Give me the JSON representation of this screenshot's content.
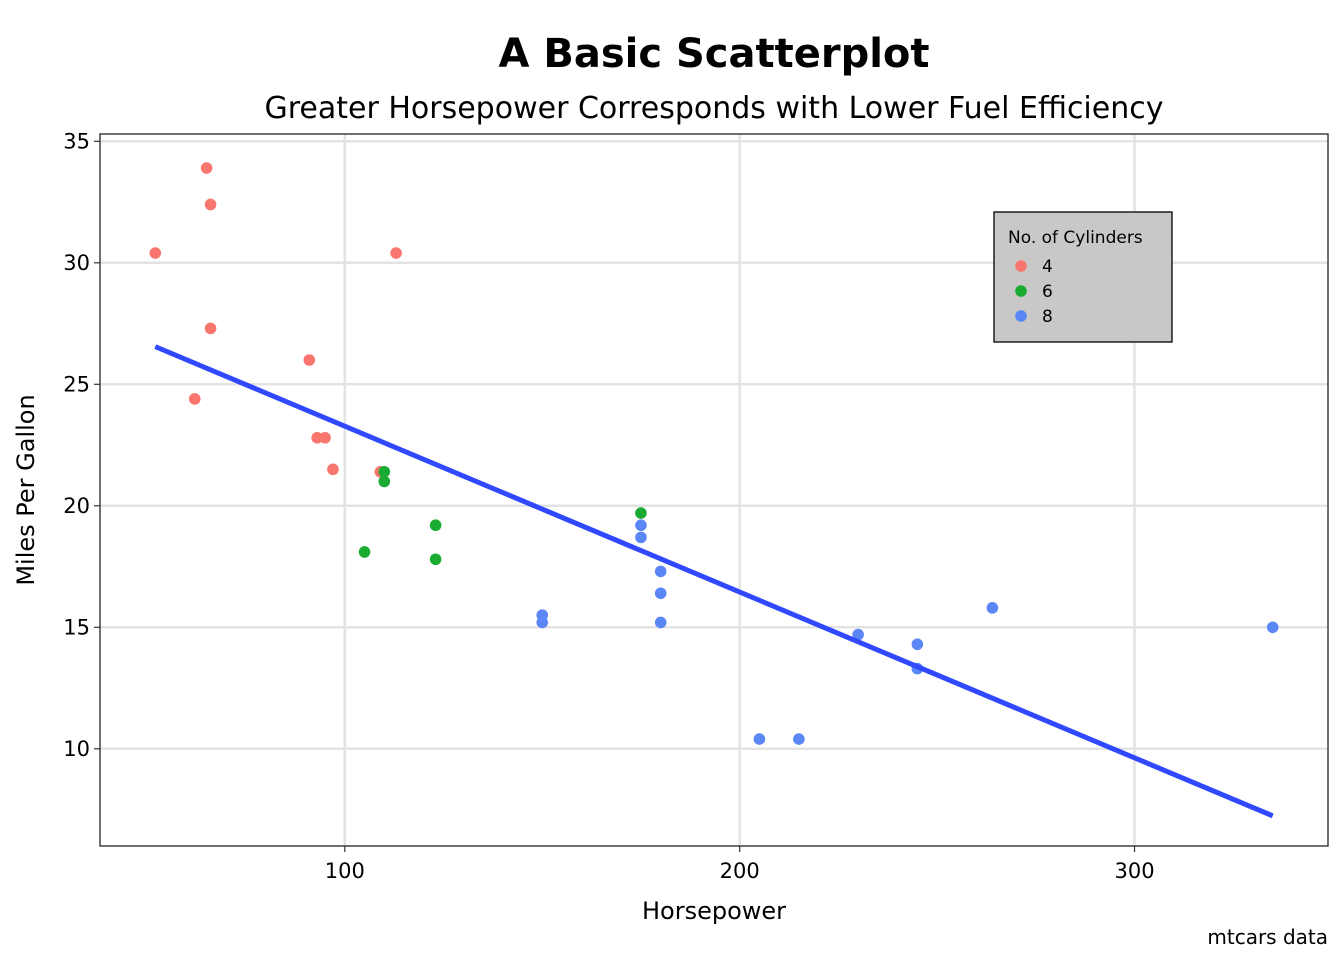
{
  "chart_data": {
    "type": "scatter",
    "title": "A Basic Scatterplot",
    "subtitle": "Greater Horsepower Corresponds with Lower Fuel Efficiency",
    "xlabel": "Horsepower",
    "ylabel": "Miles Per Gallon",
    "caption": "mtcars data",
    "xlim": [
      38,
      349
    ],
    "ylim": [
      6.0,
      35.3
    ],
    "x_ticks": [
      100,
      200,
      300
    ],
    "y_ticks": [
      10,
      15,
      20,
      25,
      30,
      35
    ],
    "grid": true,
    "legend": {
      "title": "No. of Cylinders",
      "placement": "top-right"
    },
    "series": [
      {
        "name": "4",
        "color": "#F8766D",
        "points": [
          {
            "x": 52,
            "y": 30.4
          },
          {
            "x": 65,
            "y": 33.9
          },
          {
            "x": 66,
            "y": 32.4
          },
          {
            "x": 66,
            "y": 27.3
          },
          {
            "x": 62,
            "y": 24.4
          },
          {
            "x": 91,
            "y": 26.0
          },
          {
            "x": 93,
            "y": 22.8
          },
          {
            "x": 95,
            "y": 22.8
          },
          {
            "x": 97,
            "y": 21.5
          },
          {
            "x": 109,
            "y": 21.4
          },
          {
            "x": 113,
            "y": 30.4
          }
        ]
      },
      {
        "name": "6",
        "color": "#1aab33",
        "points": [
          {
            "x": 105,
            "y": 18.1
          },
          {
            "x": 110,
            "y": 21.4
          },
          {
            "x": 110,
            "y": 21.0
          },
          {
            "x": 123,
            "y": 19.2
          },
          {
            "x": 123,
            "y": 17.8
          },
          {
            "x": 175,
            "y": 19.7
          }
        ]
      },
      {
        "name": "8",
        "color": "#5a87f5",
        "points": [
          {
            "x": 150,
            "y": 15.5
          },
          {
            "x": 150,
            "y": 15.2
          },
          {
            "x": 175,
            "y": 19.2
          },
          {
            "x": 175,
            "y": 18.7
          },
          {
            "x": 180,
            "y": 17.3
          },
          {
            "x": 180,
            "y": 16.4
          },
          {
            "x": 180,
            "y": 15.2
          },
          {
            "x": 205,
            "y": 10.4
          },
          {
            "x": 215,
            "y": 10.4
          },
          {
            "x": 230,
            "y": 14.7
          },
          {
            "x": 245,
            "y": 14.3
          },
          {
            "x": 245,
            "y": 13.3
          },
          {
            "x": 264,
            "y": 15.8
          },
          {
            "x": 335,
            "y": 15.0
          }
        ]
      }
    ],
    "trend_line": {
      "color": "#3049ff",
      "x": [
        52,
        335
      ],
      "y": [
        26.55,
        7.24
      ]
    }
  }
}
